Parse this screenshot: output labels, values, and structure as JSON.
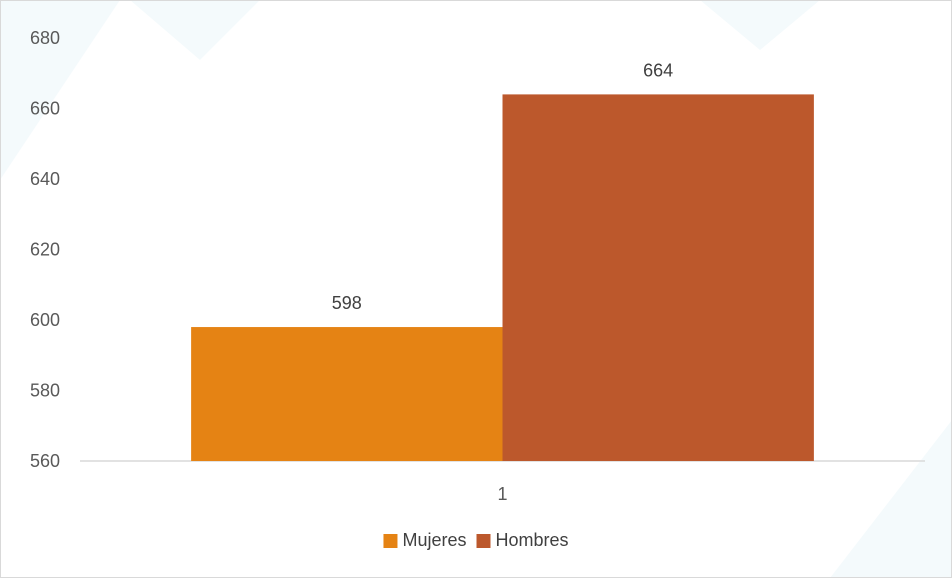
{
  "chart_data": {
    "type": "bar",
    "categories": [
      "1"
    ],
    "series": [
      {
        "name": "Mujeres",
        "values": [
          598
        ],
        "color": "#E58314"
      },
      {
        "name": "Hombres",
        "values": [
          664
        ],
        "color": "#BC582C"
      }
    ],
    "title": "",
    "xlabel": "",
    "ylabel": "",
    "ylim": [
      560,
      680
    ],
    "yticks": [
      560,
      580,
      600,
      620,
      640,
      660,
      680
    ],
    "grid": false,
    "legend": "bottom",
    "data_labels": true,
    "colors": {
      "axis_line": "#D9D9D9",
      "border": "#D9D9D9",
      "background": "#FFFFFF"
    }
  }
}
